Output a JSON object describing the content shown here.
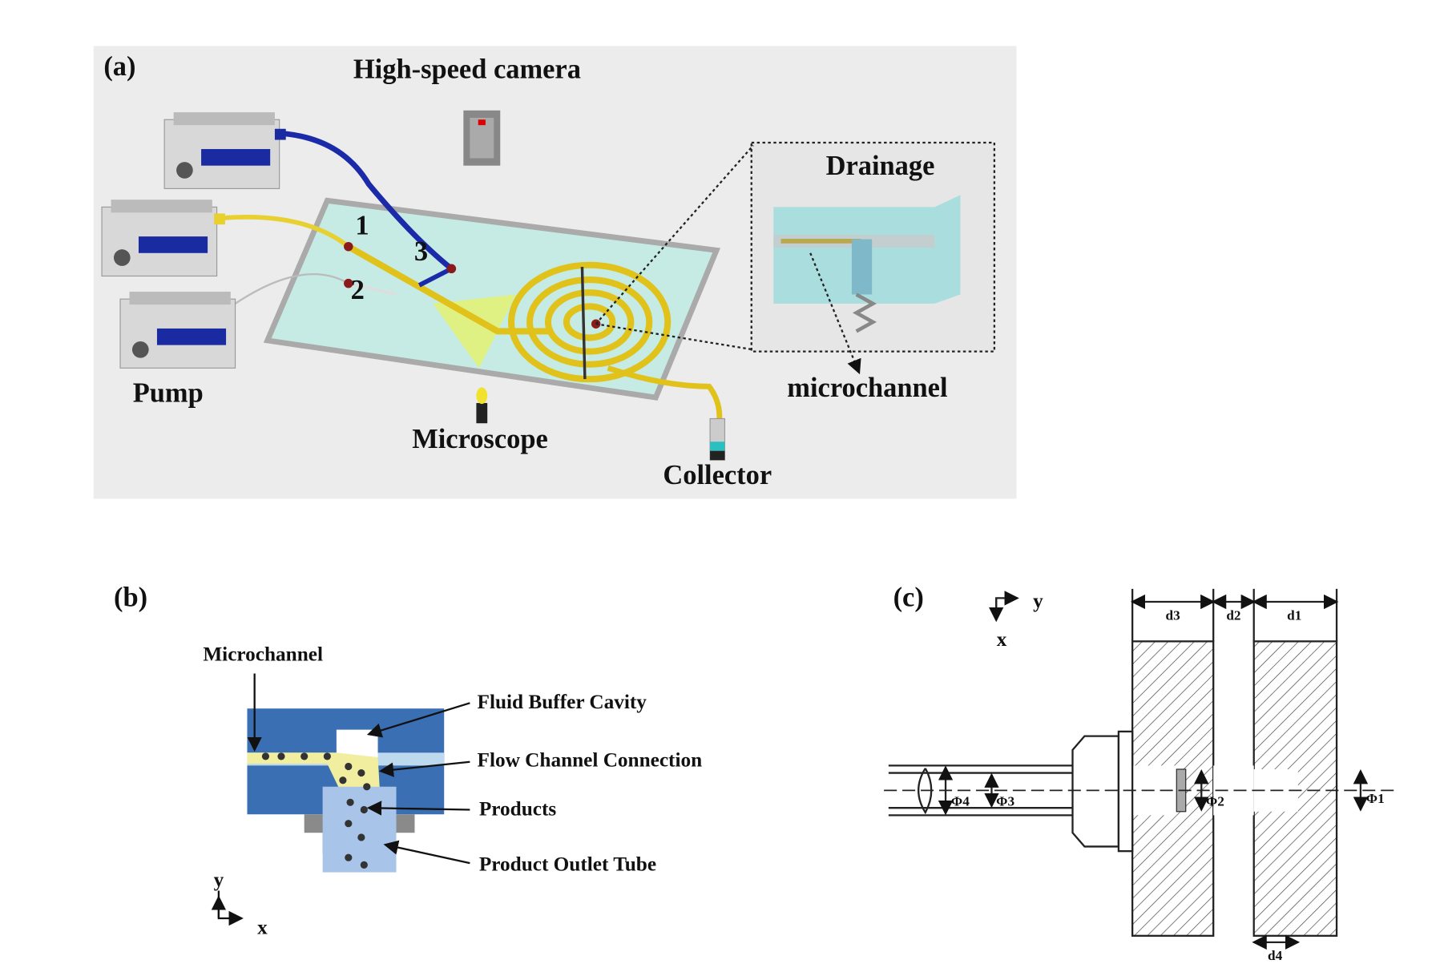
{
  "panel_a": {
    "label": "(a)",
    "camera": "High-speed camera",
    "inset_title": "Drainage",
    "inlets": [
      "1",
      "2",
      "3"
    ],
    "pump": "Pump",
    "microscope": "Microscope",
    "microchannel": "microchannel",
    "collector": "Collector"
  },
  "panel_b": {
    "label": "(b)",
    "microchannel": "Microchannel",
    "callouts": [
      "Fluid Buffer Cavity",
      "Flow Channel Connection",
      "Products",
      "Product Outlet Tube"
    ],
    "axes": {
      "y": "y",
      "x": "x"
    }
  },
  "panel_c": {
    "label": "(c)",
    "axes": {
      "y": "y",
      "x": "x"
    },
    "dims": {
      "d3": "d3",
      "d2": "d2",
      "d1": "d1",
      "d4": "d4"
    },
    "diameters": [
      "Φ4",
      "Φ3",
      "Φ2",
      "Φ1"
    ]
  }
}
